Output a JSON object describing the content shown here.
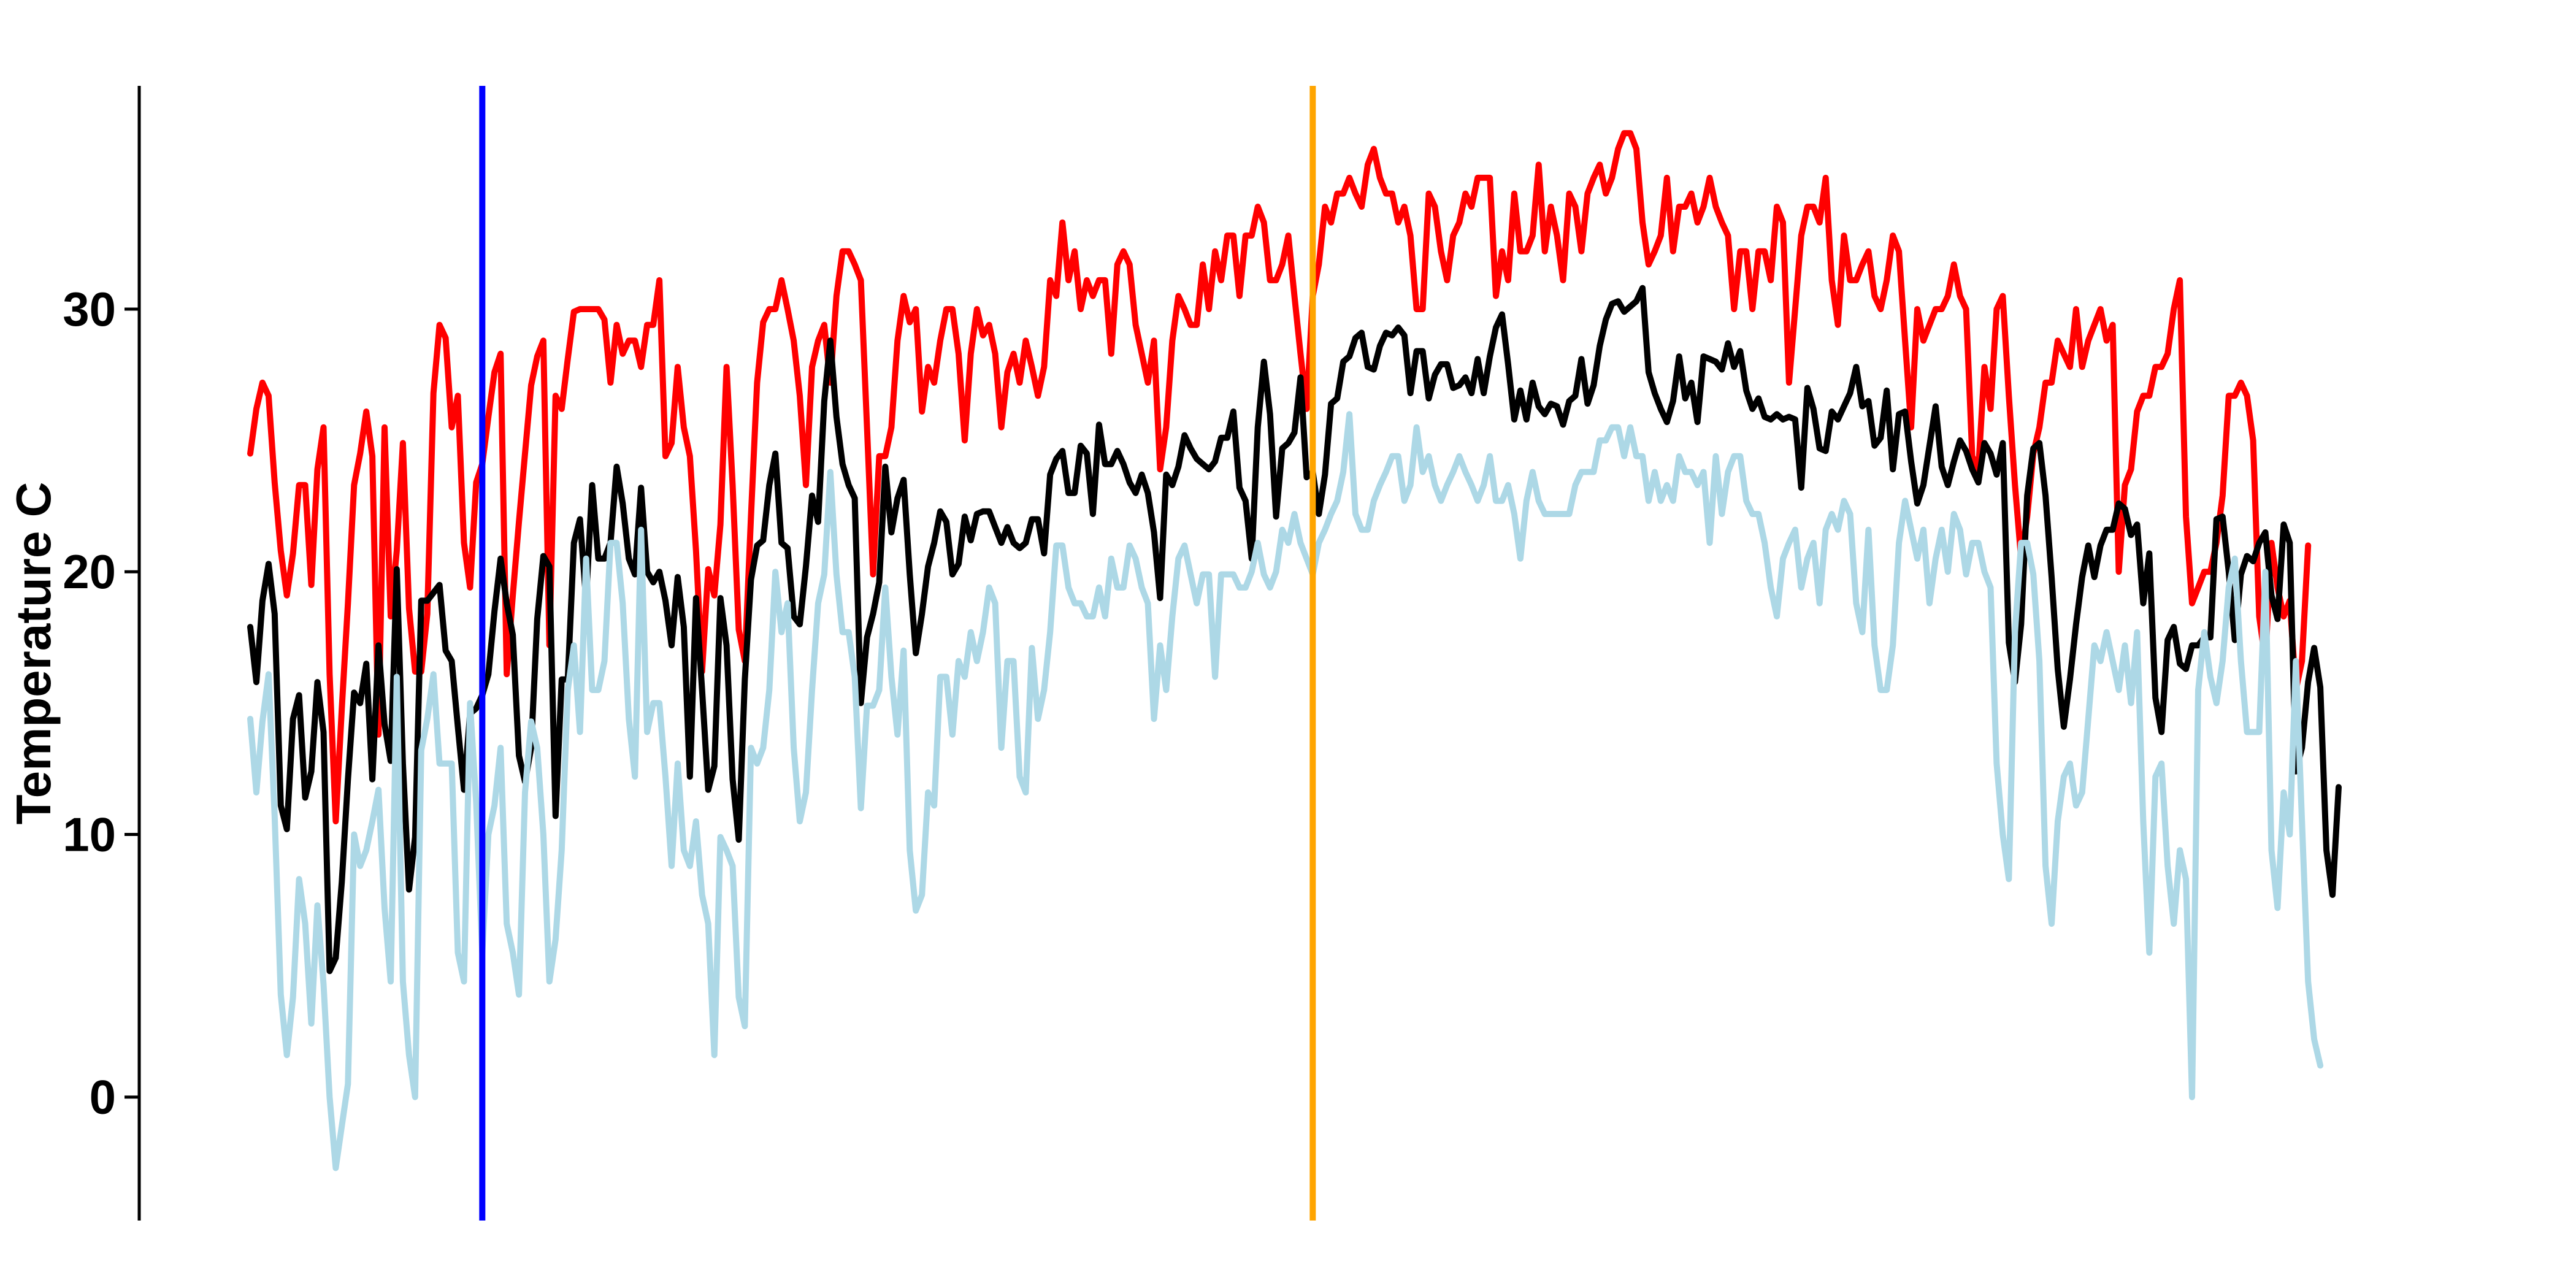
{
  "chart_data": {
    "type": "line",
    "title": "",
    "xlabel": "",
    "ylabel": "Temperature C",
    "ylim": [
      -4.7,
      38.5
    ],
    "x_range": [
      1,
      365
    ],
    "grid": false,
    "legend": "none",
    "yticks": [
      {
        "value": 0,
        "label": "0"
      },
      {
        "value": 10,
        "label": "10"
      },
      {
        "value": 20,
        "label": "20"
      },
      {
        "value": 30,
        "label": "30"
      }
    ],
    "series": [
      {
        "color": "#ff0000",
        "values": [
          24.5,
          26.2,
          27.2,
          26.7,
          23.4,
          20.8,
          19.1,
          20.7,
          23.3,
          23.3,
          19.5,
          23.9,
          25.5,
          16.1,
          10.5,
          14.8,
          18.8,
          23.3,
          24.5,
          26.1,
          24.4,
          13.8,
          25.5,
          18.3,
          20.8,
          24.9,
          18.6,
          16.2,
          16.2,
          18.4,
          26.8,
          29.4,
          28.9,
          25.5,
          26.7,
          21.1,
          19.4,
          23.4,
          24.1,
          25.9,
          27.6,
          28.3,
          16.1,
          19.1,
          21.9,
          24.5,
          27.1,
          28.2,
          28.8,
          17.2,
          26.7,
          26.2,
          28.1,
          29.9,
          30.0,
          30.0,
          30.0,
          30.0,
          29.6,
          27.2,
          29.4,
          28.3,
          28.8,
          28.8,
          27.8,
          29.4,
          29.4,
          31.1,
          24.4,
          24.9,
          27.8,
          25.5,
          24.4,
          20.8,
          16.2,
          20.1,
          19.1,
          21.8,
          27.8,
          23.3,
          17.8,
          16.6,
          22.1,
          27.2,
          29.5,
          30.0,
          30.0,
          31.1,
          30.0,
          28.8,
          26.7,
          23.3,
          27.8,
          28.8,
          29.4,
          27.2,
          30.5,
          32.2,
          32.2,
          31.7,
          31.1,
          25.5,
          19.9,
          24.4,
          24.4,
          25.5,
          28.8,
          30.5,
          29.5,
          30.0,
          26.1,
          27.8,
          27.2,
          28.8,
          30.0,
          30.0,
          28.3,
          25.0,
          28.3,
          30.0,
          29.0,
          29.4,
          28.3,
          25.5,
          27.6,
          28.3,
          27.2,
          28.8,
          27.8,
          26.7,
          27.8,
          31.1,
          30.5,
          33.3,
          31.1,
          32.2,
          30.0,
          31.1,
          30.5,
          31.1,
          31.1,
          28.3,
          31.7,
          32.2,
          31.7,
          29.4,
          28.3,
          27.2,
          28.8,
          23.9,
          25.5,
          28.8,
          30.5,
          30.0,
          29.4,
          29.4,
          31.7,
          30.0,
          32.2,
          31.1,
          32.8,
          32.8,
          30.5,
          32.8,
          32.8,
          33.9,
          33.3,
          31.1,
          31.1,
          31.7,
          32.8,
          30.5,
          28.3,
          26.2,
          30.5,
          31.7,
          33.9,
          33.3,
          34.4,
          34.4,
          35.0,
          34.4,
          33.9,
          35.5,
          36.1,
          35.0,
          34.4,
          34.4,
          33.3,
          33.9,
          32.8,
          30.0,
          30.0,
          34.4,
          33.9,
          32.2,
          31.1,
          32.8,
          33.3,
          34.4,
          33.9,
          35.0,
          35.0,
          35.0,
          30.5,
          32.2,
          31.1,
          34.4,
          32.2,
          32.2,
          32.8,
          35.5,
          32.2,
          33.9,
          32.8,
          31.1,
          34.4,
          33.9,
          32.2,
          34.4,
          35.0,
          35.5,
          34.4,
          35.0,
          36.1,
          36.7,
          36.7,
          36.1,
          33.3,
          31.7,
          32.2,
          32.8,
          35.0,
          32.2,
          33.9,
          33.9,
          34.4,
          33.3,
          33.9,
          35.0,
          33.9,
          33.3,
          32.8,
          30.0,
          32.2,
          32.2,
          30.0,
          32.2,
          32.2,
          31.1,
          33.9,
          33.3,
          27.2,
          30.0,
          32.8,
          33.9,
          33.9,
          33.3,
          35.0,
          31.1,
          29.4,
          32.8,
          31.1,
          31.1,
          31.7,
          32.2,
          30.5,
          30.0,
          31.1,
          32.8,
          32.2,
          28.8,
          25.5,
          30.0,
          28.8,
          29.4,
          30.0,
          30.0,
          30.5,
          31.7,
          30.5,
          30.0,
          24.4,
          23.9,
          27.8,
          26.2,
          30.0,
          30.5,
          26.7,
          23.3,
          20.5,
          22.1,
          24.5,
          25.5,
          27.2,
          27.2,
          28.8,
          28.3,
          27.8,
          30.0,
          27.8,
          28.8,
          29.4,
          30.0,
          28.8,
          29.4,
          20.0,
          23.3,
          23.9,
          26.1,
          26.7,
          26.7,
          27.8,
          27.8,
          28.3,
          30.0,
          31.1,
          22.1,
          18.8,
          19.4,
          20.0,
          20.0,
          21.1,
          22.9,
          26.7,
          26.7,
          27.2,
          26.7,
          25.0,
          18.3,
          16.6,
          21.1,
          19.4,
          18.3,
          18.9,
          15.5,
          16.6,
          21.0
        ]
      },
      {
        "color": "#000000",
        "values": [
          17.9,
          15.8,
          18.9,
          20.3,
          18.4,
          11.1,
          10.2,
          14.4,
          15.3,
          11.4,
          12.4,
          15.8,
          13.9,
          4.8,
          5.3,
          8.2,
          12.1,
          15.4,
          15.0,
          16.5,
          12.1,
          17.2,
          14.2,
          12.8,
          20.1,
          12.7,
          7.9,
          9.9,
          18.9,
          18.9,
          19.2,
          19.5,
          17.0,
          16.6,
          14.1,
          11.7,
          14.6,
          14.8,
          15.3,
          16.1,
          18.5,
          20.5,
          18.8,
          17.6,
          13.0,
          12.0,
          13.3,
          18.2,
          20.6,
          20.2,
          10.7,
          15.9,
          15.9,
          21.1,
          22.0,
          18.9,
          23.3,
          20.5,
          20.5,
          21.1,
          24.0,
          22.6,
          20.5,
          19.9,
          23.2,
          20.0,
          19.6,
          20.0,
          18.9,
          17.2,
          19.8,
          17.9,
          12.2,
          19.0,
          15.5,
          11.7,
          12.6,
          19.0,
          17.2,
          12.1,
          9.8,
          15.9,
          19.7,
          21.0,
          21.2,
          23.3,
          24.5,
          21.1,
          20.9,
          18.3,
          18.0,
          20.2,
          22.9,
          21.9,
          26.5,
          28.8,
          25.9,
          24.1,
          23.3,
          22.8,
          15.0,
          17.5,
          18.4,
          19.6,
          24.0,
          21.5,
          22.8,
          23.5,
          19.9,
          16.9,
          18.4,
          20.2,
          21.1,
          22.3,
          21.9,
          19.9,
          20.3,
          22.1,
          21.2,
          22.2,
          22.3,
          22.3,
          21.7,
          21.1,
          21.7,
          21.1,
          20.9,
          21.1,
          22.0,
          22.0,
          20.7,
          23.7,
          24.3,
          24.6,
          23.0,
          23.0,
          24.8,
          24.5,
          22.2,
          25.6,
          24.1,
          24.1,
          24.6,
          24.1,
          23.4,
          23.0,
          23.7,
          23.0,
          21.5,
          19.0,
          23.7,
          23.3,
          24.0,
          25.2,
          24.7,
          24.3,
          24.1,
          23.9,
          24.2,
          25.1,
          25.1,
          26.1,
          23.2,
          22.7,
          20.5,
          25.5,
          28.0,
          26.0,
          22.1,
          24.7,
          24.9,
          25.3,
          27.4,
          23.6,
          23.8,
          22.2,
          23.7,
          26.4,
          26.6,
          28.0,
          28.2,
          28.9,
          29.1,
          27.8,
          27.7,
          28.6,
          29.1,
          29.0,
          29.3,
          29.0,
          26.8,
          28.4,
          28.4,
          26.6,
          27.5,
          27.9,
          27.9,
          27.0,
          27.1,
          27.4,
          26.8,
          28.1,
          26.8,
          28.2,
          29.3,
          29.8,
          27.9,
          25.8,
          26.9,
          25.8,
          27.2,
          26.3,
          26.0,
          26.4,
          26.3,
          25.6,
          26.5,
          26.7,
          28.1,
          26.4,
          27.1,
          28.6,
          29.6,
          30.2,
          30.3,
          29.9,
          30.1,
          30.3,
          30.8,
          27.6,
          26.8,
          26.2,
          25.7,
          26.5,
          28.2,
          26.6,
          27.2,
          25.7,
          28.2,
          28.1,
          28.0,
          27.7,
          28.7,
          27.8,
          28.4,
          26.9,
          26.2,
          26.6,
          25.9,
          25.8,
          26.0,
          25.8,
          25.9,
          25.8,
          23.2,
          27.0,
          26.2,
          24.7,
          24.6,
          26.1,
          25.8,
          26.3,
          26.8,
          27.8,
          26.3,
          26.5,
          24.8,
          25.1,
          26.9,
          23.9,
          26.0,
          26.1,
          24.2,
          22.6,
          23.3,
          24.8,
          26.3,
          24.0,
          23.3,
          24.2,
          25.0,
          24.6,
          23.9,
          23.4,
          24.9,
          24.5,
          23.7,
          24.9,
          17.3,
          15.8,
          18.0,
          22.9,
          24.7,
          24.9,
          22.9,
          19.8,
          16.3,
          14.1,
          15.9,
          18.0,
          19.8,
          21.0,
          19.8,
          21.0,
          21.6,
          21.6,
          22.6,
          22.4,
          21.4,
          21.8,
          18.8,
          20.7,
          15.2,
          13.9,
          17.4,
          17.9,
          16.5,
          16.3,
          17.2,
          17.2,
          17.5,
          17.5,
          22.0,
          22.1,
          20.0,
          17.4,
          19.9,
          20.6,
          20.4,
          21.1,
          21.5,
          19.1,
          18.2,
          21.8,
          21.1,
          12.4,
          13.3,
          15.8,
          17.1,
          15.6,
          9.4,
          7.7,
          11.8
        ]
      },
      {
        "color": "#add8e6",
        "values": [
          14.4,
          11.6,
          14.3,
          16.1,
          10.7,
          3.9,
          1.6,
          3.8,
          8.3,
          6.6,
          2.8,
          7.3,
          4.3,
          0.0,
          -2.7,
          -1.1,
          0.5,
          10.0,
          8.8,
          9.4,
          10.5,
          11.7,
          7.2,
          4.4,
          16.0,
          4.4,
          1.6,
          0.0,
          13.2,
          14.4,
          16.1,
          12.7,
          12.7,
          12.7,
          5.5,
          4.4,
          15.0,
          11.2,
          5.5,
          10.0,
          11.1,
          13.3,
          6.6,
          5.5,
          3.9,
          11.6,
          14.3,
          13.3,
          10.0,
          4.4,
          6.0,
          9.4,
          15.5,
          17.2,
          13.9,
          20.5,
          15.5,
          15.5,
          16.6,
          21.1,
          21.1,
          18.8,
          14.4,
          12.2,
          21.6,
          13.9,
          15.0,
          15.0,
          12.2,
          8.8,
          12.7,
          9.4,
          8.8,
          10.5,
          7.7,
          6.6,
          1.6,
          9.9,
          9.4,
          8.8,
          3.8,
          2.7,
          13.3,
          12.7,
          13.3,
          15.5,
          20.0,
          17.7,
          18.8,
          13.3,
          10.5,
          11.6,
          15.5,
          18.8,
          19.9,
          23.8,
          19.9,
          17.7,
          17.7,
          16.0,
          11.0,
          14.9,
          14.9,
          15.5,
          19.4,
          16.0,
          13.8,
          17.0,
          9.4,
          7.1,
          7.7,
          11.6,
          11.1,
          16.0,
          16.0,
          13.8,
          16.6,
          16.0,
          17.7,
          16.6,
          17.7,
          19.4,
          18.8,
          13.3,
          16.6,
          16.6,
          12.2,
          11.6,
          17.1,
          14.4,
          15.5,
          17.7,
          21.0,
          21.0,
          19.4,
          18.8,
          18.8,
          18.3,
          18.3,
          19.4,
          18.3,
          20.5,
          19.4,
          19.4,
          21.0,
          20.5,
          19.4,
          18.8,
          14.4,
          17.2,
          15.5,
          18.3,
          20.5,
          21.0,
          19.9,
          18.8,
          19.9,
          19.9,
          16.0,
          19.9,
          19.9,
          19.9,
          19.4,
          19.4,
          20.0,
          21.1,
          19.9,
          19.4,
          20.0,
          21.6,
          21.1,
          22.2,
          21.1,
          20.5,
          19.9,
          21.1,
          21.6,
          22.2,
          22.7,
          23.8,
          26.0,
          22.2,
          21.6,
          21.6,
          22.7,
          23.3,
          23.8,
          24.4,
          24.4,
          22.7,
          23.3,
          25.5,
          23.8,
          24.4,
          23.3,
          22.7,
          23.3,
          23.8,
          24.4,
          23.8,
          23.3,
          22.7,
          23.3,
          24.4,
          22.7,
          22.7,
          23.3,
          22.2,
          20.5,
          22.7,
          23.8,
          22.7,
          22.2,
          22.2,
          22.2,
          22.2,
          22.2,
          23.3,
          23.8,
          23.8,
          23.8,
          25.0,
          25.0,
          25.5,
          25.5,
          24.4,
          25.5,
          24.4,
          24.4,
          22.7,
          23.8,
          22.7,
          23.3,
          22.7,
          24.4,
          23.8,
          23.8,
          23.3,
          23.8,
          21.1,
          24.4,
          22.2,
          23.8,
          24.4,
          24.4,
          22.7,
          22.2,
          22.2,
          21.1,
          19.4,
          18.3,
          20.5,
          21.1,
          21.6,
          19.4,
          20.5,
          21.1,
          18.8,
          21.6,
          22.2,
          21.6,
          22.7,
          22.2,
          18.8,
          17.7,
          21.6,
          17.2,
          15.5,
          15.5,
          17.2,
          21.1,
          22.7,
          21.6,
          20.5,
          21.6,
          18.8,
          20.5,
          21.6,
          20.0,
          22.2,
          21.6,
          19.9,
          21.1,
          21.1,
          20.0,
          19.4,
          12.7,
          10.0,
          8.3,
          17.7,
          21.1,
          21.1,
          19.9,
          16.6,
          8.8,
          6.6,
          10.5,
          12.2,
          12.7,
          11.1,
          11.6,
          14.4,
          17.2,
          16.6,
          17.7,
          16.6,
          15.5,
          17.2,
          15.0,
          17.7,
          10.5,
          5.5,
          12.2,
          12.7,
          8.8,
          6.6,
          9.4,
          8.3,
          0.0,
          15.5,
          17.7,
          16.0,
          15.0,
          16.6,
          19.4,
          20.5,
          16.6,
          13.9,
          13.9,
          13.9,
          20.0,
          9.4,
          7.2,
          11.6,
          10.0,
          16.6,
          10.5,
          4.4,
          2.2,
          1.2
        ]
      }
    ],
    "vertical_lines": [
      {
        "x": 39,
        "color": "#0000ff"
      },
      {
        "x": 175,
        "color": "#ffa500"
      }
    ]
  }
}
